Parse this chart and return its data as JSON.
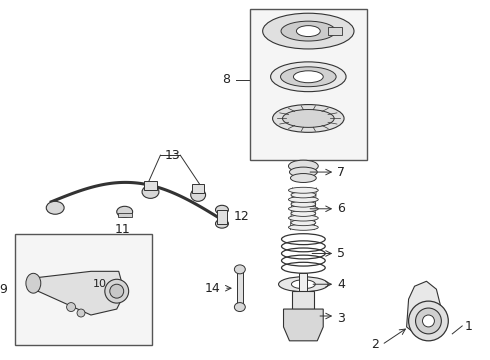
{
  "bg_color": "#ffffff",
  "line_color": "#333333",
  "text_color": "#222222",
  "fig_width": 4.9,
  "fig_height": 3.6,
  "dpi": 100
}
